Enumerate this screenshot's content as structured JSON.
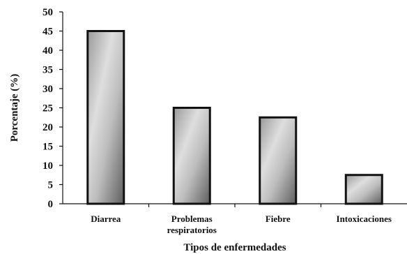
{
  "chart_data": {
    "type": "bar",
    "categories": [
      [
        "Diarrea"
      ],
      [
        "Problemas",
        "respiratorios"
      ],
      [
        "Fiebre"
      ],
      [
        "Intoxicaciones"
      ]
    ],
    "values": [
      45,
      25,
      22.5,
      7.5
    ],
    "ylabel": "Porcentaje (%)",
    "xlabel": "Tipos de enfermedades",
    "ylim": [
      0,
      50
    ],
    "yticks": [
      0,
      5,
      10,
      15,
      20,
      25,
      30,
      35,
      40,
      45,
      50
    ],
    "grid": false,
    "bar_style": "gradient-gray-with-black-border"
  }
}
